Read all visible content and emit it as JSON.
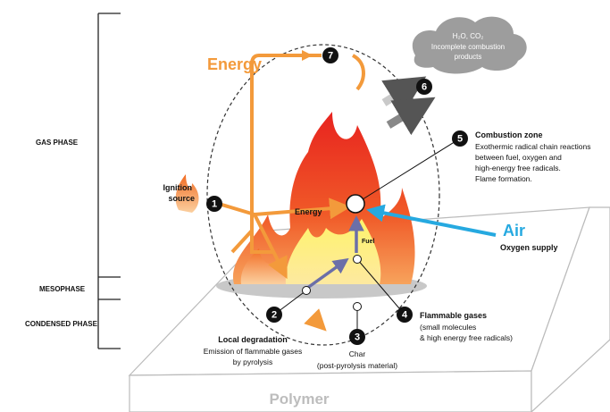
{
  "phases": {
    "gas": "GAS PHASE",
    "meso": "MESOPHASE",
    "condensed": "CONDENSED PHASE"
  },
  "energy_main": "Energy",
  "cloud": [
    "H₂O, CO₂",
    "Incomplete combustion",
    "products"
  ],
  "ignition_source": [
    "Ignition",
    "source"
  ],
  "combustion_zone": {
    "title": "Combustion zone",
    "lines": [
      "Exothermic radical chain reactions",
      "between fuel, oxygen and",
      "high-energy free radicals.",
      "Flame formation."
    ]
  },
  "energy_inner": "Energy",
  "fuel": "Fuel",
  "air": {
    "title": "Air",
    "subtitle": "Oxygen supply"
  },
  "local_degradation": {
    "title": "Local degradation",
    "lines": [
      "Emission of flammable gases",
      "by pyrolysis"
    ]
  },
  "char": {
    "title": "Char",
    "subtitle": "(post-pyrolysis material)"
  },
  "flammable_gases": {
    "title": "Flammable gases",
    "lines": [
      "(small molecules",
      "& high energy free radicals)"
    ]
  },
  "polymer": "Polymer",
  "nodes": [
    1,
    2,
    3,
    4,
    5,
    6,
    7
  ]
}
